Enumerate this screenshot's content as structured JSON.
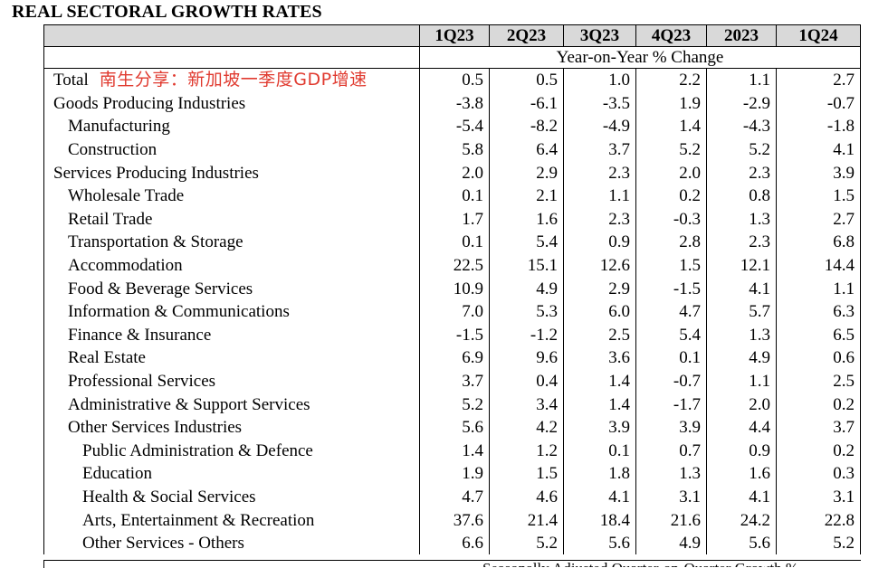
{
  "title": "REAL SECTORAL GROWTH RATES",
  "header": {
    "columns": [
      "1Q23",
      "2Q23",
      "3Q23",
      "4Q23",
      "2023",
      "1Q24"
    ],
    "subheader": "Year-on-Year % Change"
  },
  "watermark_text": "南生分享：新加坡一季度GDP增速",
  "rows": [
    {
      "label": "Total",
      "indent": 0,
      "values": [
        "0.5",
        "0.5",
        "1.0",
        "2.2",
        "1.1",
        "2.7"
      ]
    },
    {
      "label": "Goods Producing Industries",
      "indent": 0,
      "values": [
        "-3.8",
        "-6.1",
        "-3.5",
        "1.9",
        "-2.9",
        "-0.7"
      ]
    },
    {
      "label": "Manufacturing",
      "indent": 1,
      "values": [
        "-5.4",
        "-8.2",
        "-4.9",
        "1.4",
        "-4.3",
        "-1.8"
      ]
    },
    {
      "label": "Construction",
      "indent": 1,
      "values": [
        "5.8",
        "6.4",
        "3.7",
        "5.2",
        "5.2",
        "4.1"
      ]
    },
    {
      "label": "Services Producing Industries",
      "indent": 0,
      "values": [
        "2.0",
        "2.9",
        "2.3",
        "2.0",
        "2.3",
        "3.9"
      ]
    },
    {
      "label": "Wholesale Trade",
      "indent": 1,
      "values": [
        "0.1",
        "2.1",
        "1.1",
        "0.2",
        "0.8",
        "1.5"
      ]
    },
    {
      "label": "Retail Trade",
      "indent": 1,
      "values": [
        "1.7",
        "1.6",
        "2.3",
        "-0.3",
        "1.3",
        "2.7"
      ]
    },
    {
      "label": "Transportation & Storage",
      "indent": 1,
      "values": [
        "0.1",
        "5.4",
        "0.9",
        "2.8",
        "2.3",
        "6.8"
      ]
    },
    {
      "label": "Accommodation",
      "indent": 1,
      "values": [
        "22.5",
        "15.1",
        "12.6",
        "1.5",
        "12.1",
        "14.4"
      ]
    },
    {
      "label": "Food & Beverage Services",
      "indent": 1,
      "values": [
        "10.9",
        "4.9",
        "2.9",
        "-1.5",
        "4.1",
        "1.1"
      ]
    },
    {
      "label": "Information & Communications",
      "indent": 1,
      "values": [
        "7.0",
        "5.3",
        "6.0",
        "4.7",
        "5.7",
        "6.3"
      ]
    },
    {
      "label": "Finance & Insurance",
      "indent": 1,
      "values": [
        "-1.5",
        "-1.2",
        "2.5",
        "5.4",
        "1.3",
        "6.5"
      ]
    },
    {
      "label": "Real Estate",
      "indent": 1,
      "values": [
        "6.9",
        "9.6",
        "3.6",
        "0.1",
        "4.9",
        "0.6"
      ]
    },
    {
      "label": "Professional Services",
      "indent": 1,
      "values": [
        "3.7",
        "0.4",
        "1.4",
        "-0.7",
        "1.1",
        "2.5"
      ]
    },
    {
      "label": "Administrative & Support Services",
      "indent": 1,
      "values": [
        "5.2",
        "3.4",
        "1.4",
        "-1.7",
        "2.0",
        "0.2"
      ]
    },
    {
      "label": "Other Services Industries",
      "indent": 1,
      "values": [
        "5.6",
        "4.2",
        "3.9",
        "3.9",
        "4.4",
        "3.7"
      ]
    },
    {
      "label": "Public Administration & Defence",
      "indent": 2,
      "values": [
        "1.4",
        "1.2",
        "0.1",
        "0.7",
        "0.9",
        "0.2"
      ]
    },
    {
      "label": "Education",
      "indent": 2,
      "values": [
        "1.9",
        "1.5",
        "1.8",
        "1.3",
        "1.6",
        "0.3"
      ]
    },
    {
      "label": "Health & Social Services",
      "indent": 2,
      "values": [
        "4.7",
        "4.6",
        "4.1",
        "3.1",
        "4.1",
        "3.1"
      ]
    },
    {
      "label": "Arts, Entertainment & Recreation",
      "indent": 2,
      "values": [
        "37.6",
        "21.4",
        "18.4",
        "21.6",
        "24.2",
        "22.8"
      ]
    },
    {
      "label": "Other Services - Others",
      "indent": 2,
      "values": [
        "6.6",
        "5.2",
        "5.6",
        "4.9",
        "5.6",
        "5.2"
      ]
    }
  ],
  "footer_partial_text": "Seasonally Adjusted Quarter-on-Quarter Growth %"
}
